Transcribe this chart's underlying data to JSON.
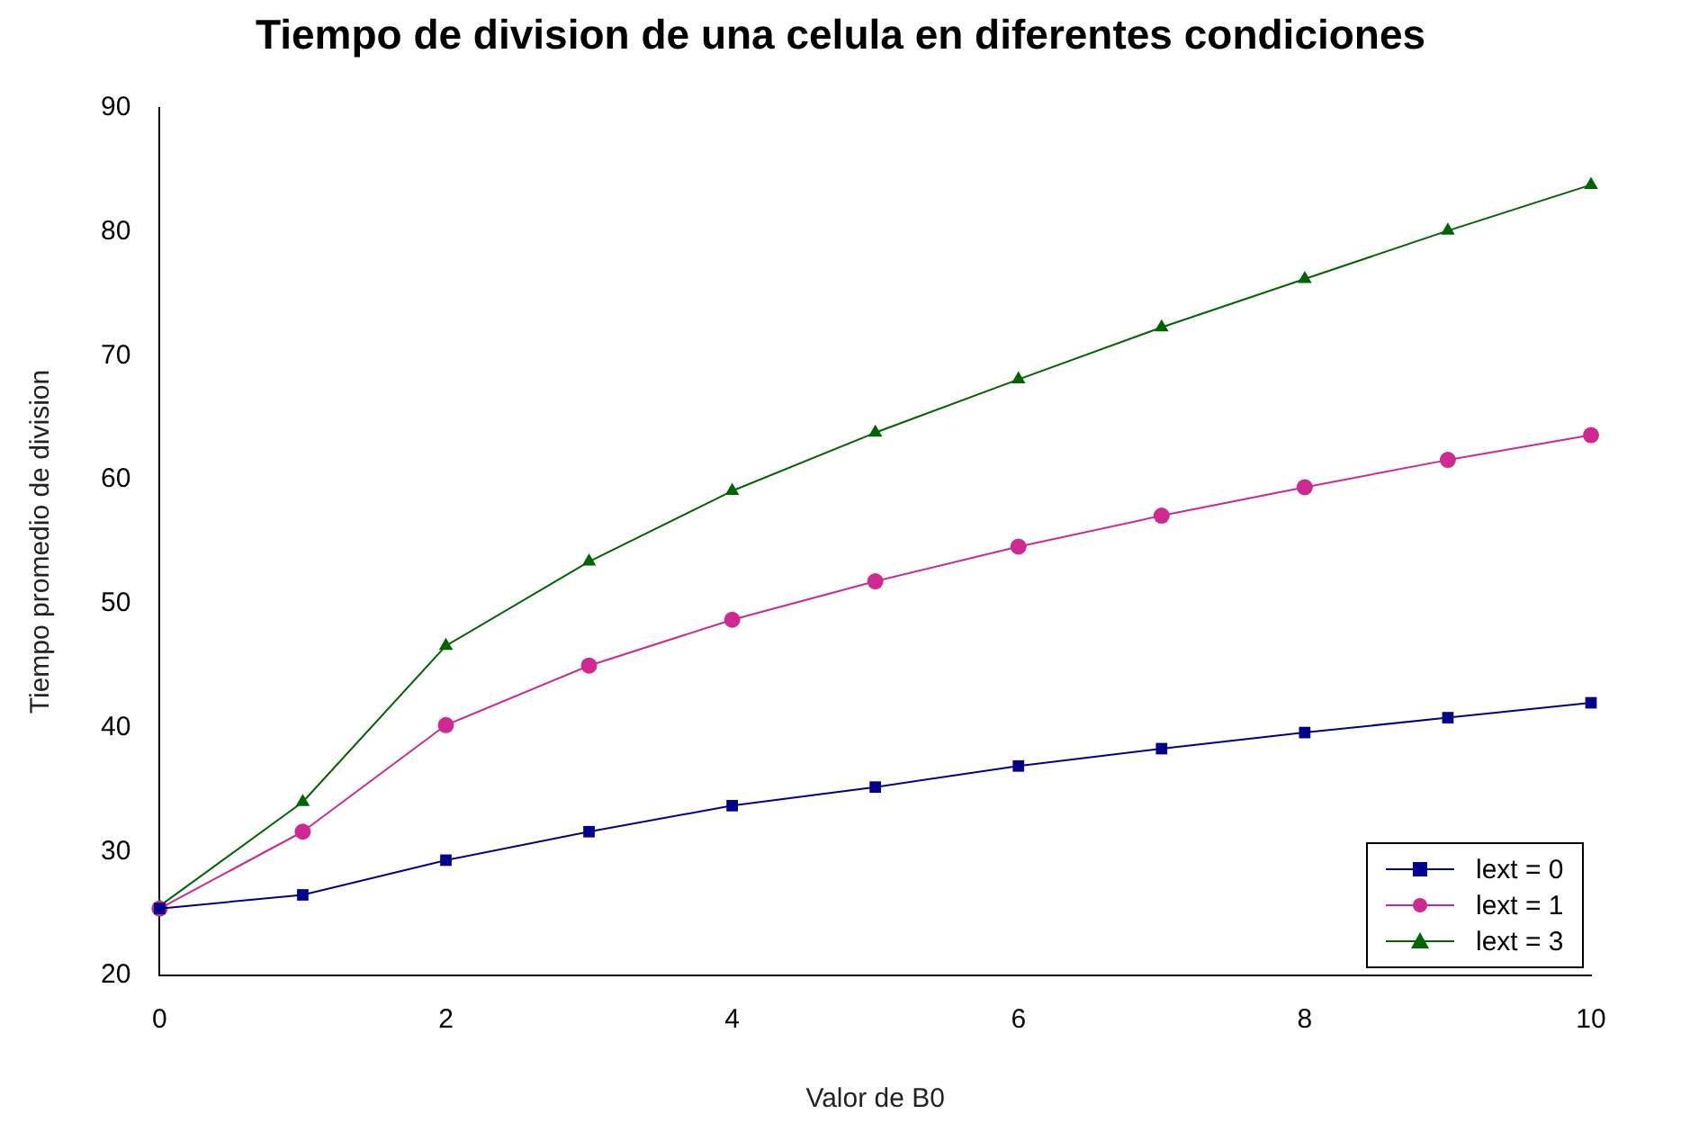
{
  "chart_data": {
    "type": "line",
    "title": "Tiempo de division de una celula en diferentes condiciones",
    "xlabel": "Valor de B0",
    "ylabel": "Tiempo promedio de division",
    "x": [
      0,
      1,
      2,
      3,
      4,
      5,
      6,
      7,
      8,
      9,
      10
    ],
    "series": [
      {
        "name": "lext = 0",
        "color": "#00008b",
        "marker": "square",
        "values": [
          25.4,
          26.5,
          29.3,
          31.6,
          33.7,
          35.2,
          36.9,
          38.3,
          39.6,
          40.8,
          42.0
        ]
      },
      {
        "name": "lext = 1",
        "color": "#cd2990",
        "marker": "circle",
        "values": [
          25.4,
          31.6,
          40.2,
          45.0,
          48.7,
          51.8,
          54.6,
          57.1,
          59.4,
          61.6,
          63.6
        ]
      },
      {
        "name": "lext = 3",
        "color": "#006400",
        "marker": "triangle",
        "values": [
          25.6,
          34.0,
          46.6,
          53.4,
          59.1,
          63.8,
          68.1,
          72.3,
          76.2,
          80.1,
          83.8
        ]
      }
    ],
    "xlim": [
      0,
      10
    ],
    "xticks": [
      0,
      2,
      4,
      6,
      8,
      10
    ],
    "ylim": [
      20,
      90
    ],
    "yticks": [
      20,
      30,
      40,
      50,
      60,
      70,
      80,
      90
    ],
    "grid": false,
    "legend": "bottom right",
    "line_style": "solid"
  }
}
